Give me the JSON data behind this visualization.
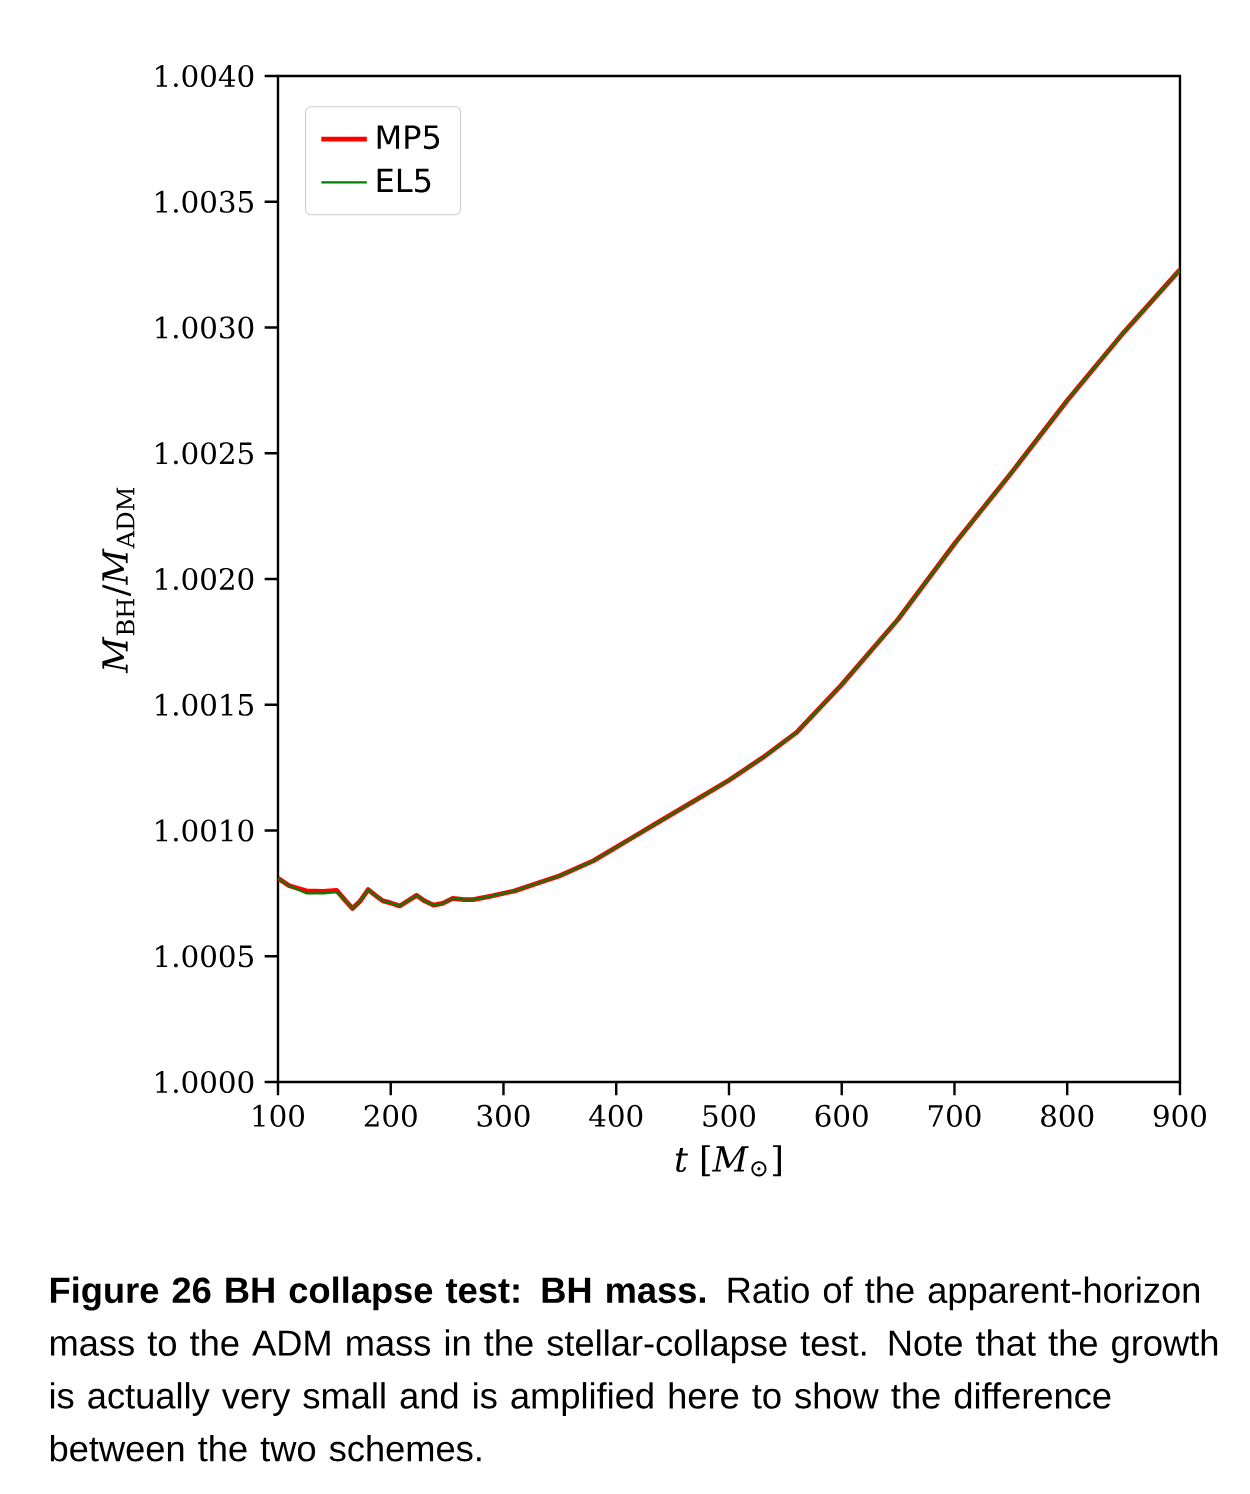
{
  "chart_data": {
    "type": "line",
    "xlabel": "*t* [*M*$_{⊙}$]",
    "ylabel": "*M*$_{BH}$/*M*$_{ADM}$",
    "x": [
      100,
      110,
      125,
      140,
      152,
      160,
      166,
      173,
      180,
      187,
      193,
      200,
      208,
      215,
      223,
      230,
      238,
      246,
      255,
      265,
      273,
      290,
      310,
      330,
      350,
      380,
      410,
      440,
      470,
      500,
      530,
      560,
      600,
      650,
      700,
      750,
      800,
      850,
      900
    ],
    "series": [
      {
        "name": "MP5",
        "color": "#ff0000",
        "values": [
          1.00081,
          1.00078,
          1.00076,
          1.000758,
          1.000762,
          1.00072,
          1.00069,
          1.00072,
          1.000765,
          1.00074,
          1.00072,
          1.000712,
          1.0007,
          1.00072,
          1.000742,
          1.00072,
          1.000703,
          1.00071,
          1.00073,
          1.000725,
          1.000725,
          1.00074,
          1.00076,
          1.00079,
          1.00082,
          1.00088,
          1.00096,
          1.00104,
          1.00112,
          1.0012,
          1.00129,
          1.00139,
          1.00158,
          1.00184,
          1.00214,
          1.00242,
          1.00271,
          1.00298,
          1.00323
        ]
      },
      {
        "name": "EL5",
        "color": "#008000",
        "values": [
          1.00081,
          1.00078,
          1.00075,
          1.00075,
          1.000755,
          1.00072,
          1.00069,
          1.00072,
          1.000765,
          1.00074,
          1.00072,
          1.000712,
          1.0007,
          1.00072,
          1.000742,
          1.00072,
          1.000703,
          1.00071,
          1.00073,
          1.000725,
          1.000725,
          1.00074,
          1.00076,
          1.00079,
          1.00082,
          1.00088,
          1.00096,
          1.00104,
          1.00112,
          1.0012,
          1.00129,
          1.00139,
          1.00158,
          1.00184,
          1.00214,
          1.00242,
          1.00271,
          1.00298,
          1.00323
        ]
      }
    ],
    "xlim": [
      100,
      900
    ],
    "xticks": [
      100,
      200,
      300,
      400,
      500,
      600,
      700,
      800,
      900
    ],
    "ylim": [
      1.0,
      1.004
    ],
    "yticks": [
      {
        "value": 1.0,
        "label": "1.0000"
      },
      {
        "value": 1.0005,
        "label": "1.0005"
      },
      {
        "value": 1.001,
        "label": "1.0010"
      },
      {
        "value": 1.0015,
        "label": "1.0015"
      },
      {
        "value": 1.002,
        "label": "1.0020"
      },
      {
        "value": 1.0025,
        "label": "1.0025"
      },
      {
        "value": 1.003,
        "label": "1.0030"
      },
      {
        "value": 1.0035,
        "label": "1.0035"
      },
      {
        "value": 1.004,
        "label": "1.0040"
      }
    ],
    "grid": false,
    "legend": "top left",
    "line_style": "solid",
    "annotations": [
      "**Figure 26  BH collapse test: BH mass.** Ratio of the apparent-horizon mass to the ADM mass in the stellar-collapse test. Note that the growth is actually very small and is amplified here to show the difference between the two schemes."
    ]
  }
}
